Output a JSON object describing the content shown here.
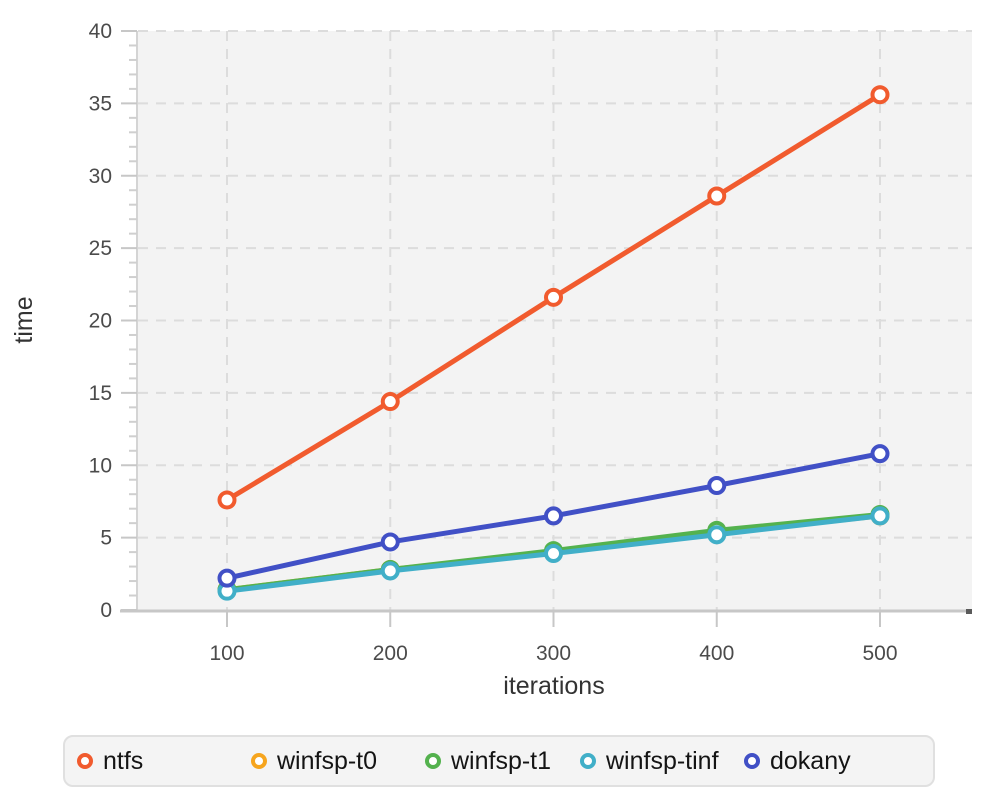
{
  "chart_data": {
    "type": "line",
    "title": "",
    "xlabel": "iterations",
    "ylabel": "time",
    "x": [
      100,
      200,
      300,
      400,
      500
    ],
    "xticks": [
      100,
      200,
      300,
      400,
      500
    ],
    "yticks": [
      0,
      5,
      10,
      15,
      20,
      25,
      30,
      35,
      40
    ],
    "y_minor_step": 1,
    "ylim": [
      0,
      40
    ],
    "grid": "dashed",
    "legend_position": "bottom",
    "plot_bg": "#f3f3f3",
    "grid_color": "#dcdcdc",
    "axis_color": "#c7c7c7",
    "tick_label_color": "#4b4b4b",
    "axis_title_color": "#333333",
    "marker_fill": "#ffffff",
    "series": [
      {
        "name": "ntfs",
        "color": "#f15b2e",
        "values": [
          7.6,
          14.4,
          21.6,
          28.6,
          35.6
        ]
      },
      {
        "name": "winfsp-t0",
        "color": "#f6a51e",
        "values": [
          1.4,
          2.8,
          4.0,
          5.3,
          6.5
        ]
      },
      {
        "name": "winfsp-t1",
        "color": "#54b24e",
        "values": [
          1.4,
          2.8,
          4.1,
          5.5,
          6.6
        ]
      },
      {
        "name": "winfsp-tinf",
        "color": "#41afc8",
        "values": [
          1.3,
          2.7,
          3.9,
          5.2,
          6.5
        ]
      },
      {
        "name": "dokany",
        "color": "#4150c6",
        "values": [
          2.2,
          4.7,
          6.5,
          8.6,
          10.8
        ]
      }
    ],
    "draw_order": [
      1,
      2,
      3,
      4,
      0
    ]
  }
}
